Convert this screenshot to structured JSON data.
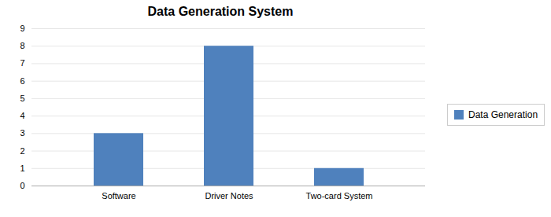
{
  "chart_data": {
    "type": "bar",
    "title": "Data Generation System",
    "categories": [
      "Software",
      "Driver Notes",
      "Two-card System"
    ],
    "series": [
      {
        "name": "Data Generation",
        "color": "#4F81BD",
        "values": [
          3,
          8,
          1
        ]
      }
    ],
    "ylim": [
      0,
      9
    ],
    "yticks": [
      0,
      1,
      2,
      3,
      4,
      5,
      6,
      7,
      8,
      9
    ],
    "grid": true,
    "legend": "right"
  }
}
